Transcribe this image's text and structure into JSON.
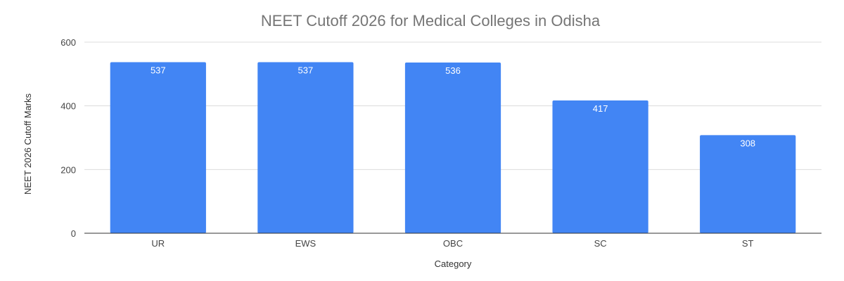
{
  "chart_data": {
    "type": "bar",
    "title": "NEET Cutoff 2026 for Medical Colleges in Odisha",
    "xlabel": "Category",
    "ylabel": "NEET 2026 Cutoff Marks",
    "categories": [
      "UR",
      "EWS",
      "OBC",
      "SC",
      "ST"
    ],
    "values": [
      537,
      537,
      536,
      417,
      308
    ],
    "ylim": [
      0,
      600
    ],
    "yticks": [
      0,
      200,
      400,
      600
    ],
    "grid": true,
    "legend": "none",
    "bar_color": "#4285f4",
    "data_labels": true
  }
}
